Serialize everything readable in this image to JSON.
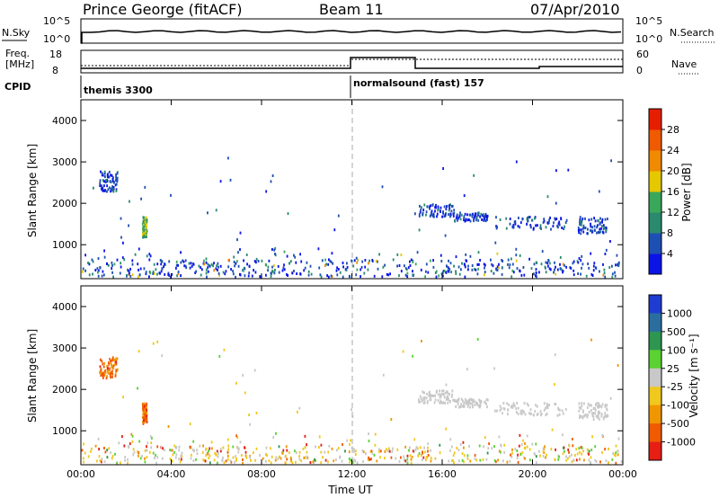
{
  "header": {
    "station": "Prince George (fitACF)",
    "beam": "Beam 11",
    "date": "07/Apr/2010"
  },
  "noise_panel": {
    "left_label": "N.Sky",
    "left_ticks": [
      "10^5",
      "10^0"
    ],
    "right_ticks": [
      "10^5",
      "10^0"
    ],
    "right_label": "N.Search"
  },
  "freq_panel": {
    "left_label_1": "Freq.",
    "left_label_2": "[MHz]",
    "left_ticks": [
      "18",
      "8"
    ],
    "right_ticks": [
      "60",
      "0"
    ],
    "right_label": "Nave"
  },
  "cpid": {
    "label": "CPID",
    "segments": [
      {
        "name": "themis 3300",
        "start_hour": 0
      },
      {
        "name": "normalsound (fast) 157",
        "start_hour": 12
      }
    ]
  },
  "chart_data": [
    {
      "type": "heatmap",
      "name": "power",
      "ylabel": "Slant Range [km]",
      "xlabel": "Time UT",
      "xlim_hours": [
        0,
        24
      ],
      "ylim": [
        180,
        4500
      ],
      "yticks": [
        "1000",
        "2000",
        "3000",
        "4000"
      ],
      "xticks": [
        "00:00",
        "04:00",
        "08:00",
        "12:00",
        "16:00",
        "20:00",
        "00:00"
      ],
      "colorbar": {
        "label": "Power [dB]",
        "tick_labels": [
          "4",
          "8",
          "12",
          "16",
          "20",
          "24",
          "28"
        ],
        "colors": [
          "#0a14e6",
          "#1e50b4",
          "#2a8a6e",
          "#3aa85a",
          "#e6c800",
          "#f08a00",
          "#f05a00",
          "#e61e00"
        ]
      }
    },
    {
      "type": "heatmap",
      "name": "velocity",
      "ylabel": "Slant Range [km]",
      "xlabel": "Time UT",
      "xlim_hours": [
        0,
        24
      ],
      "ylim": [
        180,
        4500
      ],
      "yticks": [
        "1000",
        "2000",
        "3000",
        "4000"
      ],
      "xticks": [
        "00:00",
        "04:00",
        "08:00",
        "12:00",
        "16:00",
        "20:00",
        "00:00"
      ],
      "colorbar": {
        "label": "Velocity [m s⁻¹]",
        "tick_labels": [
          "1000",
          "500",
          "100",
          "25",
          "-25",
          "-100",
          "-500",
          "-1000"
        ],
        "colors": [
          "#1e3cd2",
          "#2a6ea0",
          "#2d9650",
          "#5ad232",
          "#c8c8c8",
          "#f0c81e",
          "#f09600",
          "#f05a00",
          "#e61e14"
        ]
      }
    }
  ]
}
